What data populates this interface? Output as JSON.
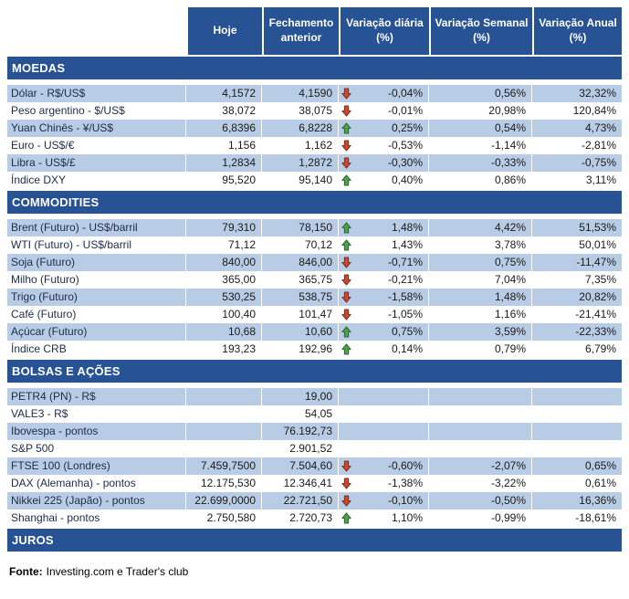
{
  "chart_data": {
    "type": "table",
    "columns": [
      "",
      "Hoje",
      "Fechamento anterior",
      "Variação diária (%)",
      "Variação Semanal (%)",
      "Variação Anual (%)"
    ],
    "sections": [
      {
        "title": "MOEDAS",
        "rows": [
          {
            "label": "Dólar - R$/US$",
            "hoje": "4,1572",
            "fechamento": "4,1590",
            "arrow": "down",
            "diaria": "-0,04%",
            "semanal": "0,56%",
            "anual": "32,32%"
          },
          {
            "label": "Peso argentino - $/US$",
            "hoje": "38,072",
            "fechamento": "38,075",
            "arrow": "down",
            "diaria": "-0,01%",
            "semanal": "20,98%",
            "anual": "120,84%"
          },
          {
            "label": "Yuan Chinês - ¥/US$",
            "hoje": "6,8396",
            "fechamento": "6,8228",
            "arrow": "up",
            "diaria": "0,25%",
            "semanal": "0,54%",
            "anual": "4,73%"
          },
          {
            "label": "Euro - US$/€",
            "hoje": "1,156",
            "fechamento": "1,162",
            "arrow": "down",
            "diaria": "-0,53%",
            "semanal": "-1,14%",
            "anual": "-2,81%"
          },
          {
            "label": "Libra - US$/£",
            "hoje": "1,2834",
            "fechamento": "1,2872",
            "arrow": "down",
            "diaria": "-0,30%",
            "semanal": "-0,33%",
            "anual": "-0,75%"
          },
          {
            "label": "Índice DXY",
            "hoje": "95,520",
            "fechamento": "95,140",
            "arrow": "up",
            "diaria": "0,40%",
            "semanal": "0,86%",
            "anual": "3,11%"
          }
        ]
      },
      {
        "title": "COMMODITIES",
        "rows": [
          {
            "label": "Brent (Futuro) - US$/barril",
            "hoje": "79,310",
            "fechamento": "78,150",
            "arrow": "up",
            "diaria": "1,48%",
            "semanal": "4,42%",
            "anual": "51,53%"
          },
          {
            "label": "WTI (Futuro) - US$/barril",
            "hoje": "71,12",
            "fechamento": "70,12",
            "arrow": "up",
            "diaria": "1,43%",
            "semanal": "3,78%",
            "anual": "50,01%"
          },
          {
            "label": "Soja (Futuro)",
            "hoje": "840,00",
            "fechamento": "846,00",
            "arrow": "down",
            "diaria": "-0,71%",
            "semanal": "0,75%",
            "anual": "-11,47%"
          },
          {
            "label": "Milho (Futuro)",
            "hoje": "365,00",
            "fechamento": "365,75",
            "arrow": "down",
            "diaria": "-0,21%",
            "semanal": "7,04%",
            "anual": "7,35%"
          },
          {
            "label": "Trigo (Futuro)",
            "hoje": "530,25",
            "fechamento": "538,75",
            "arrow": "down",
            "diaria": "-1,58%",
            "semanal": "1,48%",
            "anual": "20,82%"
          },
          {
            "label": "Café (Futuro)",
            "hoje": "100,40",
            "fechamento": "101,47",
            "arrow": "down",
            "diaria": "-1,05%",
            "semanal": "1,16%",
            "anual": "-21,41%"
          },
          {
            "label": "Açúcar (Futuro)",
            "hoje": "10,68",
            "fechamento": "10,60",
            "arrow": "up",
            "diaria": "0,75%",
            "semanal": "3,59%",
            "anual": "-22,33%"
          },
          {
            "label": "Índice CRB",
            "hoje": "193,23",
            "fechamento": "192,96",
            "arrow": "up",
            "diaria": "0,14%",
            "semanal": "0,79%",
            "anual": "6,79%"
          }
        ]
      },
      {
        "title": "BOLSAS E AÇÕES",
        "rows": [
          {
            "label": "PETR4 (PN) - R$",
            "hoje": "",
            "fechamento": "19,00",
            "arrow": "",
            "diaria": "",
            "semanal": "",
            "anual": ""
          },
          {
            "label": "VALE3 - R$",
            "hoje": "",
            "fechamento": "54,05",
            "arrow": "",
            "diaria": "",
            "semanal": "",
            "anual": ""
          },
          {
            "label": "Ibovespa - pontos",
            "hoje": "",
            "fechamento": "76.192,73",
            "arrow": "",
            "diaria": "",
            "semanal": "",
            "anual": ""
          },
          {
            "label": "S&P 500",
            "hoje": "",
            "fechamento": "2.901,52",
            "arrow": "",
            "diaria": "",
            "semanal": "",
            "anual": ""
          },
          {
            "label": "FTSE 100 (Londres)",
            "hoje": "7.459,7500",
            "fechamento": "7.504,60",
            "arrow": "down",
            "diaria": "-0,60%",
            "semanal": "-2,07%",
            "anual": "0,65%"
          },
          {
            "label": "DAX (Alemanha) - pontos",
            "hoje": "12.175,530",
            "fechamento": "12.346,41",
            "arrow": "down",
            "diaria": "-1,38%",
            "semanal": "-3,22%",
            "anual": "0,61%"
          },
          {
            "label": "Nikkei 225 (Japão) - pontos",
            "hoje": "22.699,0000",
            "fechamento": "22.721,50",
            "arrow": "down",
            "diaria": "-0,10%",
            "semanal": "-0,50%",
            "anual": "16,36%"
          },
          {
            "label": "Shanghai - pontos",
            "hoje": "2.750,580",
            "fechamento": "2.720,73",
            "arrow": "up",
            "diaria": "1,10%",
            "semanal": "-0,99%",
            "anual": "-18,61%"
          }
        ]
      },
      {
        "title": "JUROS",
        "rows": []
      }
    ]
  },
  "footer": {
    "label": "Fonte:",
    "text": "Investing.com e Trader's club"
  },
  "colors": {
    "header_bg": "#275294",
    "row_alt_bg": "#B9CCE5",
    "header_text": "#FFFFFF",
    "label_text": "#1E2B4A",
    "value_text": "#1A1A1A",
    "arrow_up_fill": "#4CA14E",
    "arrow_up_stroke": "#2C6B2F",
    "arrow_down_fill": "#C7492F",
    "arrow_down_stroke": "#8A2E1D"
  }
}
